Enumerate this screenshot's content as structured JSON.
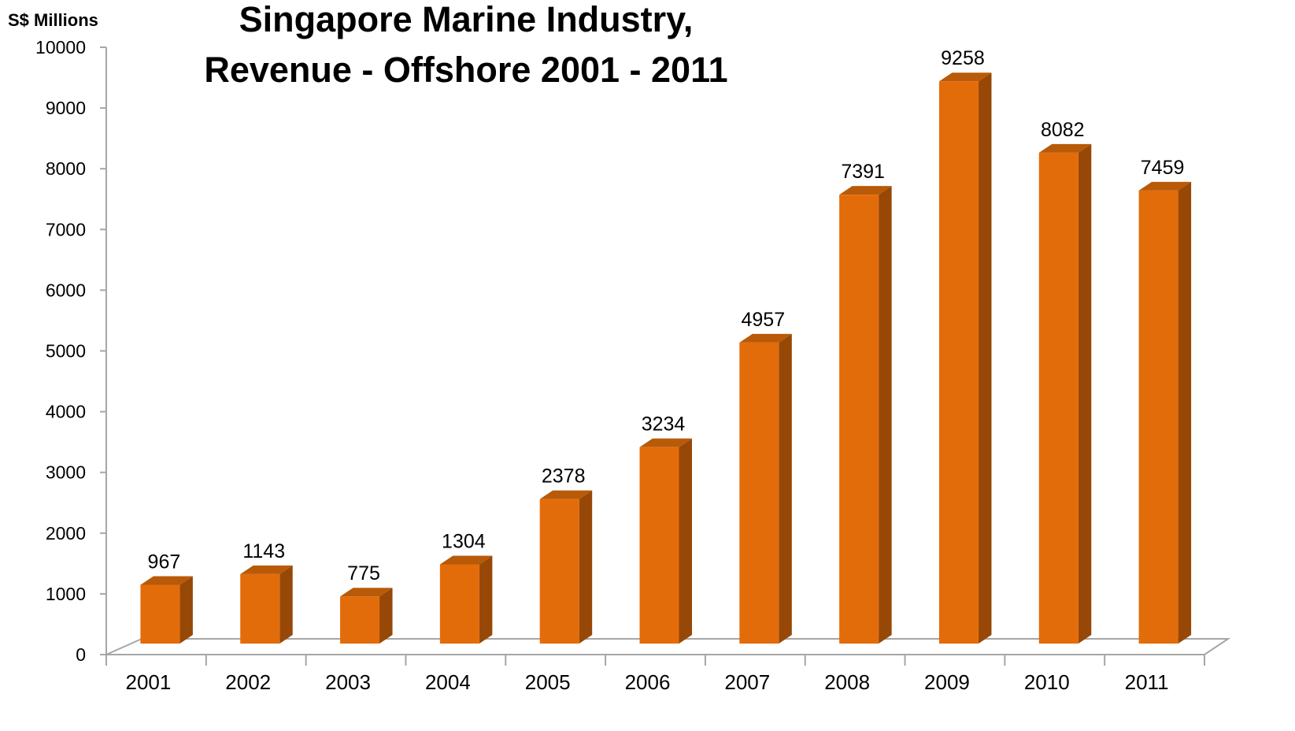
{
  "chart_data": {
    "type": "bar",
    "title_line1": "Singapore Marine Industry,",
    "title_line2": "Revenue - Offshore 2001 - 2011",
    "ylabel": "S$ Millions",
    "xlabel": "",
    "categories": [
      "2001",
      "2002",
      "2003",
      "2004",
      "2005",
      "2006",
      "2007",
      "2008",
      "2009",
      "2010",
      "2011"
    ],
    "values": [
      967,
      1143,
      775,
      1304,
      2378,
      3234,
      4957,
      7391,
      9258,
      8082,
      7459
    ],
    "data_labels": [
      "967",
      "1143",
      "775",
      "1304",
      "2378",
      "3234",
      "4957",
      "7391",
      "9258",
      "8082",
      "7459"
    ],
    "yticks": [
      "0",
      "1000",
      "2000",
      "3000",
      "4000",
      "5000",
      "6000",
      "7000",
      "8000",
      "9000",
      "10000"
    ],
    "ylim": [
      0,
      10000
    ],
    "grid": false,
    "legend": "none",
    "colors": {
      "bar_front": "#E36C0A",
      "bar_side": "#974806",
      "bar_top": "#B85A08",
      "floor": "#FFFFFF",
      "floor_edge": "#A6A6A6",
      "axis": "#A6A6A6"
    }
  }
}
